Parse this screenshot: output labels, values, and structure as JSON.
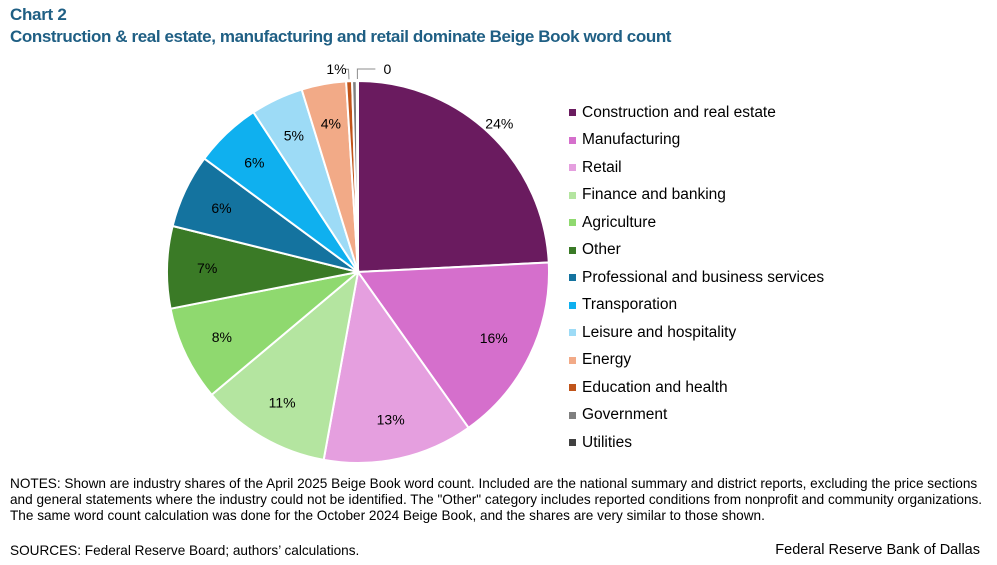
{
  "header": {
    "chart_label": "Chart 2",
    "title": "Construction & real estate, manufacturing and retail dominate Beige Book word count"
  },
  "chart_data": {
    "type": "pie",
    "title": "Construction & real estate, manufacturing and retail dominate Beige Book word count",
    "unit": "%",
    "legend_position": "right",
    "slices": [
      {
        "label": "Construction and real estate",
        "value": 24.4,
        "display": "24%",
        "color": "#6a1b5f"
      },
      {
        "label": "Manufacturing",
        "value": 16.1,
        "display": "16%",
        "color": "#d56fcc"
      },
      {
        "label": "Retail",
        "value": 12.8,
        "display": "13%",
        "color": "#e59fdf"
      },
      {
        "label": "Finance and banking",
        "value": 11.1,
        "display": "11%",
        "color": "#b4e5a0"
      },
      {
        "label": "Agriculture",
        "value": 8.1,
        "display": "8%",
        "color": "#8fd96f"
      },
      {
        "label": "Other",
        "value": 7.0,
        "display": "7%",
        "color": "#3a7a26"
      },
      {
        "label": "Professional and business services",
        "value": 6.3,
        "display": "6%",
        "color": "#14739f"
      },
      {
        "label": "Transporation",
        "value": 5.7,
        "display": "6%",
        "color": "#0fb0ef"
      },
      {
        "label": "Leisure and hospitality",
        "value": 4.5,
        "display": "5%",
        "color": "#9ddbf6"
      },
      {
        "label": "Energy",
        "value": 3.8,
        "display": "4%",
        "color": "#f2aa87"
      },
      {
        "label": "Education and health",
        "value": 0.5,
        "display": "1%",
        "color": "#c0541a"
      },
      {
        "label": "Government",
        "value": 0.4,
        "display": "",
        "color": "#7f7f7f"
      },
      {
        "label": "Utilities",
        "value": 0.1,
        "display": "0",
        "color": "#404040"
      }
    ]
  },
  "footer": {
    "notes": "NOTES: Shown are industry shares of the April 2025 Beige Book word count. Included are the national summary and district reports, excluding the price sections and general statements where the industry could not be identified. The \"Other\" category includes reported conditions from nonprofit and community organizations. The same word count calculation was done for the October 2024 Beige Book, and the shares are very similar to those shown.",
    "sources": "SOURCES: Federal Reserve Board; authors’ calculations.",
    "organization": "Federal Reserve Bank of Dallas"
  }
}
